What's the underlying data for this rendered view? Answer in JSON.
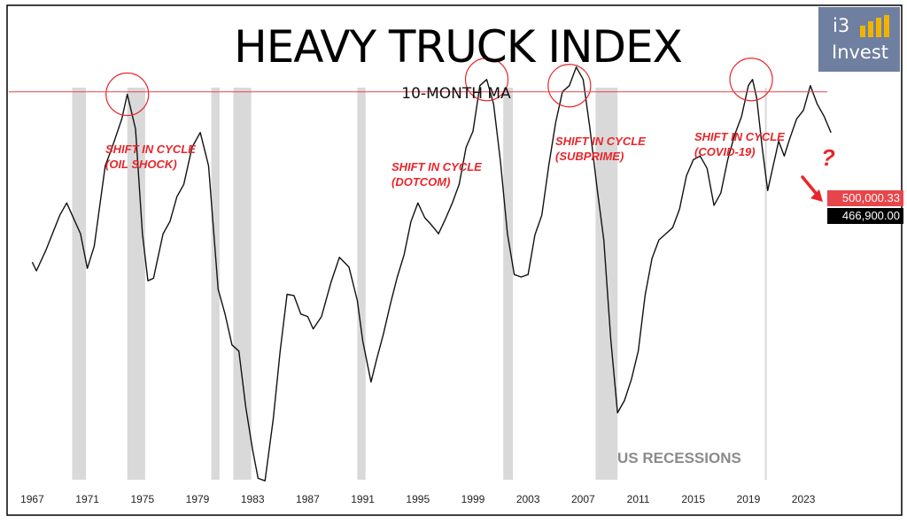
{
  "title": "HEAVY TRUCK INDEX",
  "subtitle": "10-MONTH MA",
  "logo": {
    "line1": "i3",
    "line2": "Invest"
  },
  "annotations": [
    {
      "line1": "SHIFT IN CYCLE",
      "line2": "(OIL SHOCK)"
    },
    {
      "line1": "SHIFT IN CYCLE",
      "line2": "(DOTCOM)"
    },
    {
      "line1": "SHIFT IN CYCLE",
      "line2": "(SUBPRIME)"
    },
    {
      "line1": "SHIFT IN CYCLE",
      "line2": "(COVID-19)"
    }
  ],
  "question_mark": "?",
  "recessions_label": "US RECESSIONS",
  "price_tags": {
    "threshold": "500,000.33",
    "current": "466,900.00"
  },
  "colors": {
    "annotation": "#e8262b",
    "recession_band": "#d9d9d9",
    "series": "#111111",
    "threshold_line": "#e8454a"
  },
  "chart_data": {
    "type": "line",
    "x_ticks": [
      "1967",
      "1971",
      "1975",
      "1979",
      "1983",
      "1987",
      "1991",
      "1995",
      "1999",
      "2003",
      "2007",
      "2011",
      "2015",
      "2019",
      "2023"
    ],
    "xlim": [
      1966.2,
      2026.4
    ],
    "ylim": [
      150000,
      560000
    ],
    "grid": false,
    "threshold": 500000.33,
    "current_value": 466900,
    "recessions": [
      [
        1969.9,
        1970.9
      ],
      [
        1973.9,
        1975.2
      ],
      [
        1980.0,
        1980.6
      ],
      [
        1981.6,
        1982.9
      ],
      [
        1990.6,
        1991.2
      ],
      [
        2001.2,
        2001.9
      ],
      [
        2007.9,
        2009.5
      ],
      [
        2020.2,
        2020.3
      ]
    ],
    "highlights": [
      1973.9,
      2000.0,
      2006.0,
      2019.2
    ],
    "series": [
      {
        "x": [
          1967.0,
          1967.3,
          1968.0,
          1969.0,
          1969.5,
          1970.5,
          1971.0,
          1971.5,
          1972.3,
          1972.8,
          1973.5,
          1973.9,
          1974.5,
          1975.0,
          1975.4,
          1975.8,
          1976.5,
          1977.0,
          1977.5,
          1978.0,
          1978.6,
          1979.2,
          1979.8,
          1980.5,
          1981.0,
          1981.5,
          1982.0,
          1982.5,
          1983.0,
          1983.4,
          1983.9,
          1984.5,
          1985.0,
          1985.5,
          1986.0,
          1986.5,
          1987.0,
          1987.4,
          1988.0,
          1988.7,
          1989.3,
          1990.0,
          1990.6,
          1991.0,
          1991.6,
          1992.0,
          1992.5,
          1993.0,
          1993.5,
          1994.0,
          1994.5,
          1995.0,
          1995.5,
          1996.0,
          1996.5,
          1997.0,
          1997.5,
          1998.0,
          1998.5,
          1999.0,
          1999.5,
          2000.0,
          2000.5,
          2001.0,
          2001.5,
          2002.0,
          2002.5,
          2003.0,
          2003.5,
          2004.0,
          2004.5,
          2005.0,
          2005.5,
          2006.0,
          2006.5,
          2007.0,
          2007.5,
          2008.0,
          2008.5,
          2009.0,
          2009.5,
          2010.0,
          2010.5,
          2011.0,
          2011.5,
          2012.0,
          2012.5,
          2013.0,
          2013.5,
          2014.0,
          2014.5,
          2015.0,
          2015.5,
          2016.0,
          2016.5,
          2017.0,
          2017.5,
          2018.0,
          2018.5,
          2019.0,
          2019.3,
          2019.6,
          2020.0,
          2020.4,
          2020.8,
          2021.2,
          2021.6,
          2022.0,
          2022.5,
          2023.0,
          2023.5,
          2024.0,
          2024.5,
          2025.0
        ],
        "y": [
          362000,
          355000,
          372000,
          400000,
          410000,
          385000,
          357000,
          375000,
          440000,
          455000,
          478000,
          498000,
          470000,
          385000,
          347000,
          349000,
          385000,
          395000,
          415000,
          425000,
          455000,
          467000,
          440000,
          340000,
          320000,
          295000,
          290000,
          245000,
          210000,
          187000,
          185000,
          235000,
          290000,
          336000,
          335000,
          320000,
          318000,
          308000,
          318000,
          346000,
          366000,
          358000,
          331000,
          298000,
          265000,
          283000,
          304000,
          328000,
          350000,
          368000,
          395000,
          410000,
          398000,
          392000,
          385000,
          397000,
          410000,
          425000,
          455000,
          468000,
          505000,
          510000,
          490000,
          443000,
          385000,
          352000,
          350000,
          352000,
          384000,
          400000,
          440000,
          475000,
          500000,
          505000,
          520000,
          510000,
          470000,
          423000,
          380000,
          300000,
          240000,
          250000,
          267000,
          290000,
          335000,
          365000,
          380000,
          385000,
          390000,
          405000,
          432000,
          445000,
          448000,
          438000,
          408000,
          418000,
          445000,
          465000,
          480000,
          505000,
          510000,
          495000,
          455000,
          420000,
          440000,
          460000,
          448000,
          462000,
          478000,
          485000,
          505000,
          490000,
          480000,
          466900
        ]
      }
    ]
  }
}
